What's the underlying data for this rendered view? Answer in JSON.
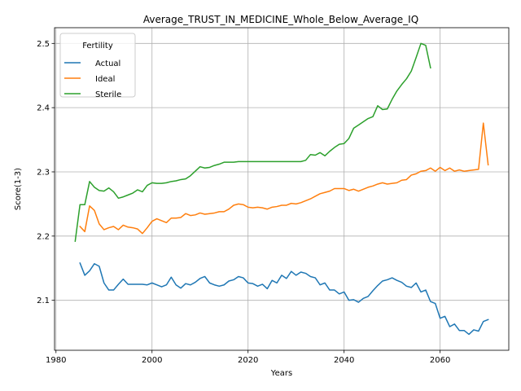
{
  "chart_data": {
    "type": "line",
    "title": "Average_TRUST_IN_MEDICINE_Whole_Below_Average_IQ",
    "xlabel": "Years",
    "ylabel": "Score(1-3)",
    "xlim": [
      1979.7,
      2074.3
    ],
    "ylim": [
      2.0222,
      2.5245
    ],
    "xticks": [
      1980,
      2000,
      2020,
      2040,
      2060
    ],
    "yticks": [
      2.1,
      2.2,
      2.3,
      2.4,
      2.5
    ],
    "xtick_labels": [
      "1980",
      "2000",
      "2020",
      "2040",
      "2060"
    ],
    "ytick_labels": [
      "2.1",
      "2.2",
      "2.3",
      "2.4",
      "2.5"
    ],
    "grid": true,
    "legend": {
      "title": "Fertility",
      "position": "upper left"
    },
    "series": [
      {
        "name": "Actual",
        "color": "#1f77b4",
        "x": [
          1985,
          1986,
          1987,
          1988,
          1989,
          1990,
          1991,
          1992,
          1993,
          1994,
          1995,
          1996,
          1997,
          1998,
          1999,
          2000,
          2001,
          2002,
          2003,
          2004,
          2005,
          2006,
          2007,
          2008,
          2009,
          2010,
          2011,
          2012,
          2013,
          2014,
          2015,
          2016,
          2017,
          2018,
          2019,
          2020,
          2021,
          2022,
          2023,
          2024,
          2025,
          2026,
          2027,
          2028,
          2029,
          2030,
          2031,
          2032,
          2033,
          2034,
          2035,
          2036,
          2037,
          2038,
          2039,
          2040,
          2041,
          2042,
          2043,
          2044,
          2045,
          2046,
          2047,
          2048,
          2049,
          2050,
          2051,
          2052,
          2053,
          2054,
          2055,
          2056,
          2057,
          2058,
          2059,
          2060,
          2061,
          2062,
          2063,
          2064,
          2065,
          2066,
          2067,
          2068,
          2069,
          2070
        ],
        "values": [
          2.158,
          2.139,
          2.146,
          2.157,
          2.153,
          2.127,
          2.116,
          2.116,
          2.125,
          2.133,
          2.125,
          2.125,
          2.125,
          2.125,
          2.124,
          2.127,
          2.124,
          2.121,
          2.124,
          2.136,
          2.124,
          2.119,
          2.126,
          2.124,
          2.128,
          2.134,
          2.137,
          2.127,
          2.124,
          2.122,
          2.124,
          2.13,
          2.132,
          2.137,
          2.135,
          2.127,
          2.126,
          2.122,
          2.125,
          2.118,
          2.131,
          2.127,
          2.139,
          2.134,
          2.145,
          2.139,
          2.144,
          2.142,
          2.137,
          2.135,
          2.124,
          2.127,
          2.116,
          2.116,
          2.11,
          2.113,
          2.1,
          2.101,
          2.097,
          2.103,
          2.106,
          2.115,
          2.123,
          2.13,
          2.132,
          2.135,
          2.131,
          2.128,
          2.122,
          2.12,
          2.127,
          2.113,
          2.116,
          2.098,
          2.095,
          2.072,
          2.075,
          2.059,
          2.063,
          2.053,
          2.053,
          2.047,
          2.054,
          2.052,
          2.067,
          2.07
        ]
      },
      {
        "name": "Ideal",
        "color": "#ff7f0e",
        "x": [
          1985,
          1986,
          1987,
          1988,
          1989,
          1990,
          1991,
          1992,
          1993,
          1994,
          1995,
          1996,
          1997,
          1998,
          1999,
          2000,
          2001,
          2002,
          2003,
          2004,
          2005,
          2006,
          2007,
          2008,
          2009,
          2010,
          2011,
          2012,
          2013,
          2014,
          2015,
          2016,
          2017,
          2018,
          2019,
          2020,
          2021,
          2022,
          2023,
          2024,
          2025,
          2026,
          2027,
          2028,
          2029,
          2030,
          2031,
          2032,
          2033,
          2034,
          2035,
          2036,
          2037,
          2038,
          2039,
          2040,
          2041,
          2042,
          2043,
          2044,
          2045,
          2046,
          2047,
          2048,
          2049,
          2050,
          2051,
          2052,
          2053,
          2054,
          2055,
          2056,
          2057,
          2058,
          2059,
          2060,
          2061,
          2062,
          2063,
          2064,
          2065,
          2066,
          2067,
          2068,
          2069,
          2070
        ],
        "values": [
          2.215,
          2.207,
          2.247,
          2.24,
          2.219,
          2.21,
          2.213,
          2.215,
          2.21,
          2.217,
          2.214,
          2.213,
          2.211,
          2.204,
          2.213,
          2.223,
          2.227,
          2.224,
          2.221,
          2.228,
          2.228,
          2.229,
          2.235,
          2.232,
          2.233,
          2.236,
          2.234,
          2.235,
          2.236,
          2.238,
          2.238,
          2.242,
          2.248,
          2.25,
          2.249,
          2.245,
          2.244,
          2.245,
          2.244,
          2.242,
          2.245,
          2.246,
          2.248,
          2.248,
          2.251,
          2.25,
          2.252,
          2.255,
          2.258,
          2.262,
          2.266,
          2.268,
          2.27,
          2.274,
          2.274,
          2.274,
          2.271,
          2.273,
          2.27,
          2.273,
          2.276,
          2.278,
          2.281,
          2.283,
          2.281,
          2.282,
          2.283,
          2.287,
          2.288,
          2.295,
          2.297,
          2.301,
          2.302,
          2.306,
          2.301,
          2.307,
          2.302,
          2.306,
          2.301,
          2.303,
          2.301,
          2.302,
          2.303,
          2.304,
          2.376,
          2.311
        ]
      },
      {
        "name": "Sterile",
        "color": "#2ca02c",
        "x": [
          1984,
          1985,
          1986,
          1987,
          1988,
          1989,
          1990,
          1991,
          1992,
          1993,
          1994,
          1995,
          1996,
          1997,
          1998,
          1999,
          2000,
          2001,
          2002,
          2003,
          2004,
          2005,
          2006,
          2007,
          2008,
          2009,
          2010,
          2011,
          2012,
          2013,
          2014,
          2015,
          2016,
          2017,
          2018,
          2019,
          2020,
          2021,
          2022,
          2023,
          2024,
          2025,
          2026,
          2027,
          2028,
          2029,
          2030,
          2031,
          2032,
          2033,
          2034,
          2035,
          2036,
          2037,
          2038,
          2039,
          2040,
          2041,
          2042,
          2043,
          2044,
          2045,
          2046,
          2047,
          2048,
          2049,
          2050,
          2051,
          2052,
          2053,
          2054,
          2055,
          2056,
          2057,
          2058
        ],
        "values": [
          2.192,
          2.249,
          2.249,
          2.285,
          2.276,
          2.271,
          2.27,
          2.275,
          2.269,
          2.259,
          2.261,
          2.264,
          2.267,
          2.272,
          2.269,
          2.279,
          2.283,
          2.282,
          2.282,
          2.283,
          2.285,
          2.286,
          2.288,
          2.289,
          2.294,
          2.301,
          2.308,
          2.306,
          2.307,
          2.31,
          2.312,
          2.315,
          2.315,
          2.315,
          2.316,
          2.316,
          2.316,
          2.316,
          2.316,
          2.316,
          2.316,
          2.316,
          2.316,
          2.316,
          2.316,
          2.316,
          2.316,
          2.316,
          2.318,
          2.327,
          2.326,
          2.33,
          2.325,
          2.332,
          2.338,
          2.343,
          2.344,
          2.352,
          2.368,
          2.373,
          2.378,
          2.383,
          2.386,
          2.403,
          2.397,
          2.398,
          2.413,
          2.426,
          2.436,
          2.445,
          2.457,
          2.478,
          2.5,
          2.497,
          2.462
        ]
      }
    ]
  }
}
